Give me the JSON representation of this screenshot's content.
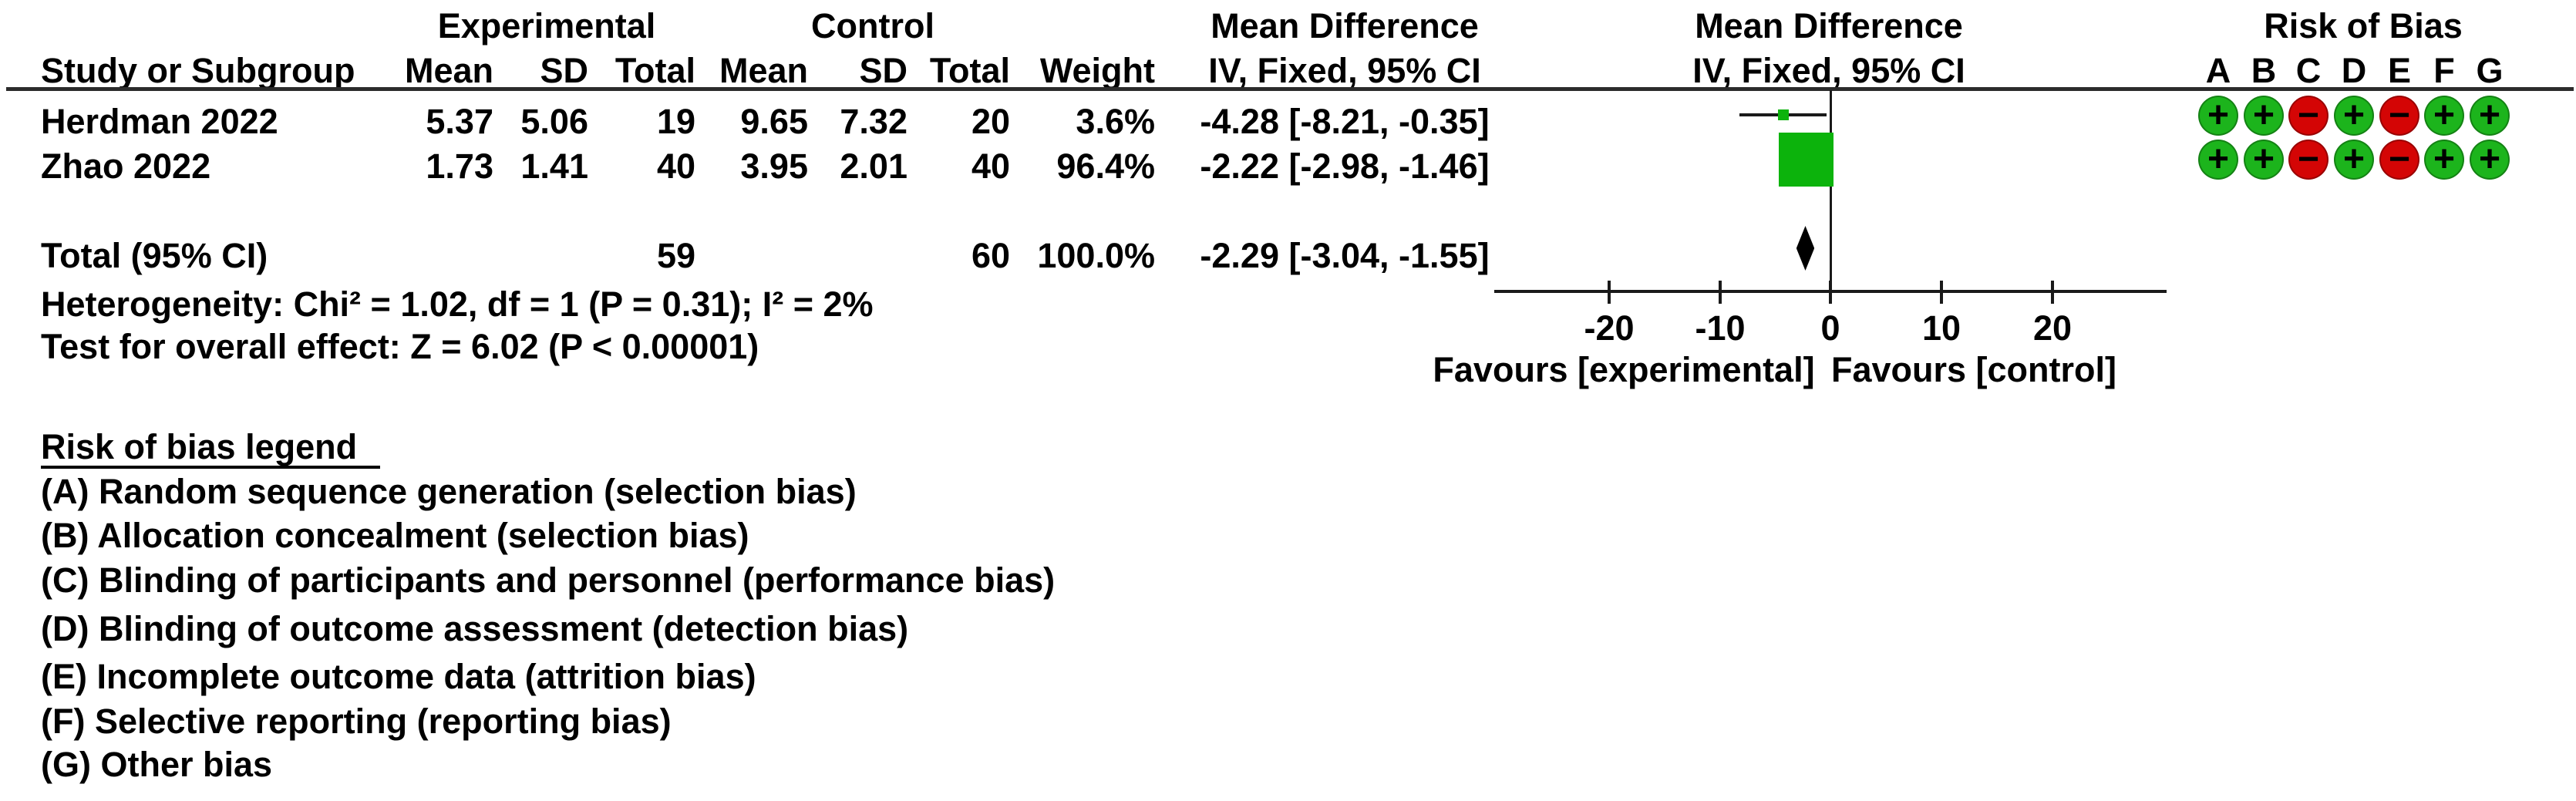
{
  "colors": {
    "low_risk_green": "#1cb41c",
    "high_risk_red": "#d40505",
    "effect_square_green": "#0cb30c",
    "line_black": "#1a1a1a"
  },
  "table": {
    "group_headers": {
      "experimental": "Experimental",
      "control": "Control",
      "md_text": "Mean Difference",
      "md_plot": "Mean Difference",
      "risk_of_bias": "Risk of Bias"
    },
    "col_headers": {
      "study": "Study or Subgroup",
      "mean": "Mean",
      "sd": "SD",
      "total": "Total",
      "weight": "Weight",
      "ci": "IV, Fixed, 95% CI",
      "rob_letters": [
        "A",
        "B",
        "C",
        "D",
        "E",
        "F",
        "G"
      ]
    },
    "rows": [
      {
        "study": "Herdman 2022",
        "mean_e": "5.37",
        "sd_e": "5.06",
        "total_e": "19",
        "mean_c": "9.65",
        "sd_c": "7.32",
        "total_c": "20",
        "weight": "3.6%",
        "ci_text": "-4.28 [-8.21, -0.35]",
        "rob": [
          {
            "symbol": "+",
            "level": "low"
          },
          {
            "symbol": "+",
            "level": "low"
          },
          {
            "symbol": "−",
            "level": "high"
          },
          {
            "symbol": "+",
            "level": "low"
          },
          {
            "symbol": "−",
            "level": "high"
          },
          {
            "symbol": "+",
            "level": "low"
          },
          {
            "symbol": "+",
            "level": "low"
          }
        ]
      },
      {
        "study": "Zhao 2022",
        "mean_e": "1.73",
        "sd_e": "1.41",
        "total_e": "40",
        "mean_c": "3.95",
        "sd_c": "2.01",
        "total_c": "40",
        "weight": "96.4%",
        "ci_text": "-2.22 [-2.98, -1.46]",
        "rob": [
          {
            "symbol": "+",
            "level": "low"
          },
          {
            "symbol": "+",
            "level": "low"
          },
          {
            "symbol": "−",
            "level": "high"
          },
          {
            "symbol": "+",
            "level": "low"
          },
          {
            "symbol": "−",
            "level": "high"
          },
          {
            "symbol": "+",
            "level": "low"
          },
          {
            "symbol": "+",
            "level": "low"
          }
        ]
      }
    ],
    "total_row": {
      "label": "Total (95% CI)",
      "total_e": "59",
      "total_c": "60",
      "weight": "100.0%",
      "ci_text": "-2.29 [-3.04, -1.55]"
    },
    "heterogeneity": "Heterogeneity: Chi² = 1.02, df = 1 (P = 0.31); I² = 2%",
    "overall_effect": "Test for overall effect: Z = 6.02 (P < 0.00001)"
  },
  "axis": {
    "favours_left": "Favours [experimental]",
    "favours_right": "Favours [control]"
  },
  "legend": {
    "title": "Risk of bias legend",
    "items": [
      "(A) Random sequence generation (selection bias)",
      "(B) Allocation concealment (selection bias)",
      "(C) Blinding of participants and personnel (performance bias)",
      "(D) Blinding of outcome assessment (detection bias)",
      "(E) Incomplete outcome data (attrition bias)",
      "(F) Selective reporting (reporting bias)",
      "(G) Other bias"
    ]
  },
  "chart_data": {
    "type": "forest",
    "effect_measure": "Mean Difference, IV, Fixed, 95% CI",
    "studies": [
      {
        "name": "Herdman 2022",
        "mean_exp": 5.37,
        "sd_exp": 5.06,
        "n_exp": 19,
        "mean_ctrl": 9.65,
        "sd_ctrl": 7.32,
        "n_ctrl": 20,
        "weight_pct": 3.6,
        "md": -4.28,
        "ci": [
          -8.21,
          -0.35
        ]
      },
      {
        "name": "Zhao 2022",
        "mean_exp": 1.73,
        "sd_exp": 1.41,
        "n_exp": 40,
        "mean_ctrl": 3.95,
        "sd_ctrl": 2.01,
        "n_ctrl": 40,
        "weight_pct": 96.4,
        "md": -2.22,
        "ci": [
          -2.98,
          -1.46
        ]
      }
    ],
    "total": {
      "n_exp": 59,
      "n_ctrl": 60,
      "weight_pct": 100.0,
      "md": -2.29,
      "ci": [
        -3.04,
        -1.55
      ]
    },
    "heterogeneity": {
      "chi2": 1.02,
      "df": 1,
      "p": 0.31,
      "i2_pct": 2
    },
    "overall_effect": {
      "z": 6.02,
      "p": "< 0.00001"
    },
    "xaxis": {
      "ticks": [
        -20,
        -10,
        0,
        10,
        20
      ],
      "range": [
        -30.4,
        30.3
      ],
      "left_label": "Favours [experimental]",
      "right_label": "Favours [control]"
    },
    "risk_of_bias": {
      "domains": [
        "A",
        "B",
        "C",
        "D",
        "E",
        "F",
        "G"
      ],
      "judgements": [
        [
          "low",
          "low",
          "high",
          "low",
          "high",
          "low",
          "low"
        ],
        [
          "low",
          "low",
          "high",
          "low",
          "high",
          "low",
          "low"
        ]
      ]
    }
  }
}
